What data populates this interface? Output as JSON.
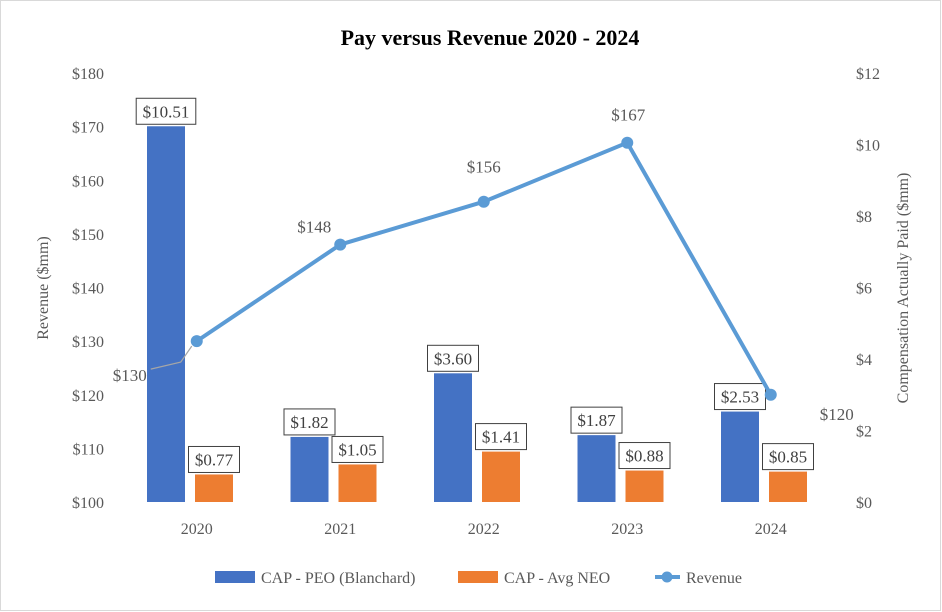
{
  "chart_data": {
    "type": "bar+line",
    "title": "Pay versus Revenue 2020 - 2024",
    "categories": [
      "2020",
      "2021",
      "2022",
      "2023",
      "2024"
    ],
    "left_axis": {
      "label": "Revenue ($mm)",
      "range": [
        100,
        180
      ],
      "ticks": [
        100,
        110,
        120,
        130,
        140,
        150,
        160,
        170,
        180
      ],
      "tick_labels": [
        "$100",
        "$110",
        "$120",
        "$130",
        "$140",
        "$150",
        "$160",
        "$170",
        "$180"
      ]
    },
    "right_axis": {
      "label": "Compensation Actually Paid ($mm)",
      "range": [
        0,
        12
      ],
      "ticks": [
        0,
        2,
        4,
        6,
        8,
        10,
        12
      ],
      "tick_labels": [
        "$0",
        "$2",
        "$4",
        "$6",
        "$8",
        "$10",
        "$12"
      ]
    },
    "series": [
      {
        "name": "CAP - PEO (Blanchard)",
        "type": "bar",
        "axis": "right",
        "color": "#4472C4",
        "values": [
          10.51,
          1.82,
          3.6,
          1.87,
          2.53
        ],
        "labels": [
          "$10.51",
          "$1.82",
          "$3.60",
          "$1.87",
          "$2.53"
        ]
      },
      {
        "name": "CAP - Avg NEO",
        "type": "bar",
        "axis": "right",
        "color": "#ED7D31",
        "values": [
          0.77,
          1.05,
          1.41,
          0.88,
          0.85
        ],
        "labels": [
          "$0.77",
          "$1.05",
          "$1.41",
          "$0.88",
          "$0.85"
        ]
      },
      {
        "name": "Revenue",
        "type": "line",
        "axis": "left",
        "color": "#5B9BD5",
        "values": [
          130,
          148,
          156,
          167,
          120
        ],
        "labels": [
          "$130",
          "$148",
          "$156",
          "$167",
          "$120"
        ]
      }
    ],
    "legend_position": "bottom",
    "grid": false
  }
}
